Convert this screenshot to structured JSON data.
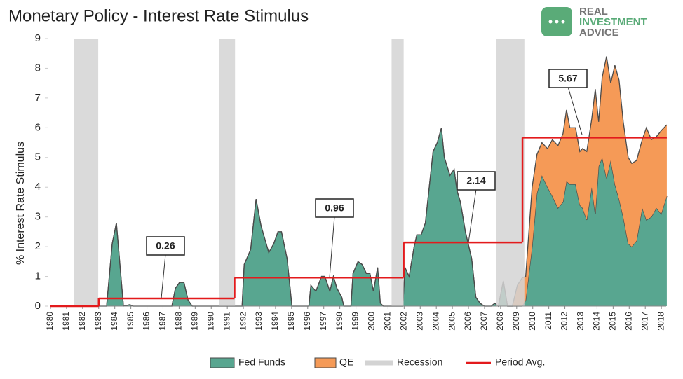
{
  "logo": [
    "REAL",
    "INVESTMENT",
    "ADVICE"
  ],
  "chart_data": {
    "type": "area",
    "title": "Monetary Policy - Interest Rate Stimulus",
    "y_label": "% Interest Rate Stimulus",
    "x": [
      1980,
      1983.49,
      1983.84,
      1984.1,
      1984.54,
      1984.93,
      1985.15,
      1987.55,
      1987.77,
      1988.03,
      1988.3,
      1988.56,
      1988.82,
      1991.92,
      1992.05,
      1992.45,
      1992.79,
      1993.1,
      1993.58,
      1993.89,
      1994.15,
      1994.37,
      1994.72,
      1995.02,
      1996.07,
      1996.2,
      1996.51,
      1996.86,
      1997.07,
      1997.38,
      1997.6,
      1997.82,
      1998.12,
      1998.25,
      1998.69,
      1998.82,
      1999.13,
      1999.39,
      1999.65,
      1999.87,
      2000.09,
      2000.35,
      2000.52,
      2000.7,
      2001.92,
      2002.05,
      2002.31,
      2002.62,
      2002.79,
      2003.06,
      2003.32,
      2003.58,
      2003.8,
      2004.06,
      2004.32,
      2004.5,
      2004.85,
      2005.11,
      2005.28,
      2005.5,
      2005.81,
      2006.2,
      2006.46,
      2006.72,
      2006.99,
      2007.42,
      2007.64,
      2007.86,
      2008.17,
      2008.43,
      2008.73,
      2009.04,
      2009.34,
      2009.56,
      2009.96,
      2010.26,
      2010.57,
      2010.92,
      2011.22,
      2011.57,
      2011.88,
      2012.1,
      2012.31,
      2012.66,
      2012.93,
      2013.1,
      2013.36,
      2013.67,
      2013.89,
      2014.1,
      2014.32,
      2014.59,
      2014.85,
      2015.11,
      2015.37,
      2015.63,
      2015.94,
      2016.16,
      2016.46,
      2016.81,
      2017.07,
      2017.38,
      2017.69,
      2017.99,
      2018.34
    ],
    "series": [
      {
        "name": "Fed Funds",
        "color": "#58a690",
        "values": [
          0,
          0,
          2.1,
          2.8,
          0,
          0.05,
          0,
          0,
          0.6,
          0.8,
          0.8,
          0.2,
          0,
          0,
          1.4,
          1.9,
          3.6,
          2.7,
          1.8,
          2.1,
          2.5,
          2.5,
          1.6,
          0,
          0,
          0.7,
          0.5,
          1.0,
          1.0,
          0.5,
          1.0,
          0.6,
          0.3,
          0,
          0,
          1.1,
          1.5,
          1.4,
          1.1,
          1.1,
          0.5,
          1.3,
          0.1,
          0,
          0,
          1.3,
          1.0,
          2.0,
          2.4,
          2.4,
          2.8,
          4.1,
          5.2,
          5.5,
          6.0,
          5.0,
          4.4,
          4.6,
          3.9,
          3.5,
          2.5,
          1.6,
          0.3,
          0.1,
          0,
          0,
          0.1,
          0,
          0.85,
          0,
          0,
          0,
          0,
          0.2,
          2.0,
          3.8,
          4.4,
          4.0,
          3.7,
          3.3,
          3.5,
          4.2,
          4.1,
          4.1,
          3.4,
          3.3,
          2.9,
          4.0,
          3.1,
          4.7,
          5.0,
          4.3,
          4.9,
          4.1,
          3.6,
          3.0,
          2.1,
          2.0,
          2.2,
          3.3,
          2.9,
          3.0,
          3.3,
          3.1,
          3.7
        ]
      },
      {
        "name": "QE",
        "color": "#f59a57",
        "values": [
          0,
          0,
          0,
          0,
          0,
          0,
          0,
          0,
          0,
          0,
          0,
          0,
          0,
          0,
          0,
          0,
          0,
          0,
          0,
          0,
          0,
          0,
          0,
          0,
          0,
          0,
          0,
          0,
          0,
          0,
          0,
          0,
          0,
          0,
          0,
          0,
          0,
          0,
          0,
          0,
          0,
          0,
          0,
          0,
          0,
          0,
          0,
          0,
          0,
          0,
          0,
          0,
          0,
          0,
          0,
          0,
          0,
          0,
          0,
          0,
          0,
          0,
          0,
          0,
          0,
          0,
          0,
          0,
          0,
          0,
          0,
          0.7,
          0.95,
          0.8,
          2.0,
          1.3,
          1.1,
          1.3,
          1.9,
          2.1,
          2.3,
          2.4,
          1.9,
          1.9,
          1.8,
          2.0,
          2.3,
          2.3,
          4.2,
          1.5,
          2.7,
          4.1,
          2.6,
          4.0,
          4.0,
          3.2,
          2.9,
          2.8,
          2.7,
          2.3,
          3.1,
          2.6,
          2.4,
          2.8,
          2.4
        ]
      }
    ],
    "recessions": {
      "name": "Recession",
      "color": "#d3d3d3",
      "ranges": [
        [
          1981.44,
          1982.97
        ],
        [
          1990.48,
          1991.48
        ],
        [
          2001.22,
          2001.97
        ],
        [
          2007.73,
          2009.48
        ]
      ]
    },
    "period_avg": {
      "name": "Period Avg.",
      "color": "#e31a1c",
      "segments": [
        {
          "start": 1980,
          "end": 1983.0,
          "value": 0
        },
        {
          "start": 1983.0,
          "end": 1991.45,
          "value": 0.26
        },
        {
          "start": 1991.45,
          "end": 2001.97,
          "value": 0.96
        },
        {
          "start": 2001.97,
          "end": 2009.36,
          "value": 2.14
        },
        {
          "start": 2009.36,
          "end": 2018.34,
          "value": 5.67
        }
      ]
    },
    "xlim": [
      1980,
      2018.3
    ],
    "xticks": [
      1980,
      1981,
      1982,
      1983,
      1984,
      1985,
      1986,
      1987,
      1988,
      1989,
      1990,
      1991,
      1992,
      1993,
      1994,
      1995,
      1996,
      1997,
      1998,
      1999,
      2000,
      2001,
      2002,
      2003,
      2004,
      2005,
      2006,
      2007,
      2008,
      2009,
      2010,
      2011,
      2012,
      2013,
      2014,
      2015,
      2016,
      2017,
      2018
    ],
    "ylim": [
      0,
      9
    ],
    "yticks": [
      0,
      1,
      2,
      3,
      4,
      5,
      6,
      7,
      8,
      9
    ]
  }
}
